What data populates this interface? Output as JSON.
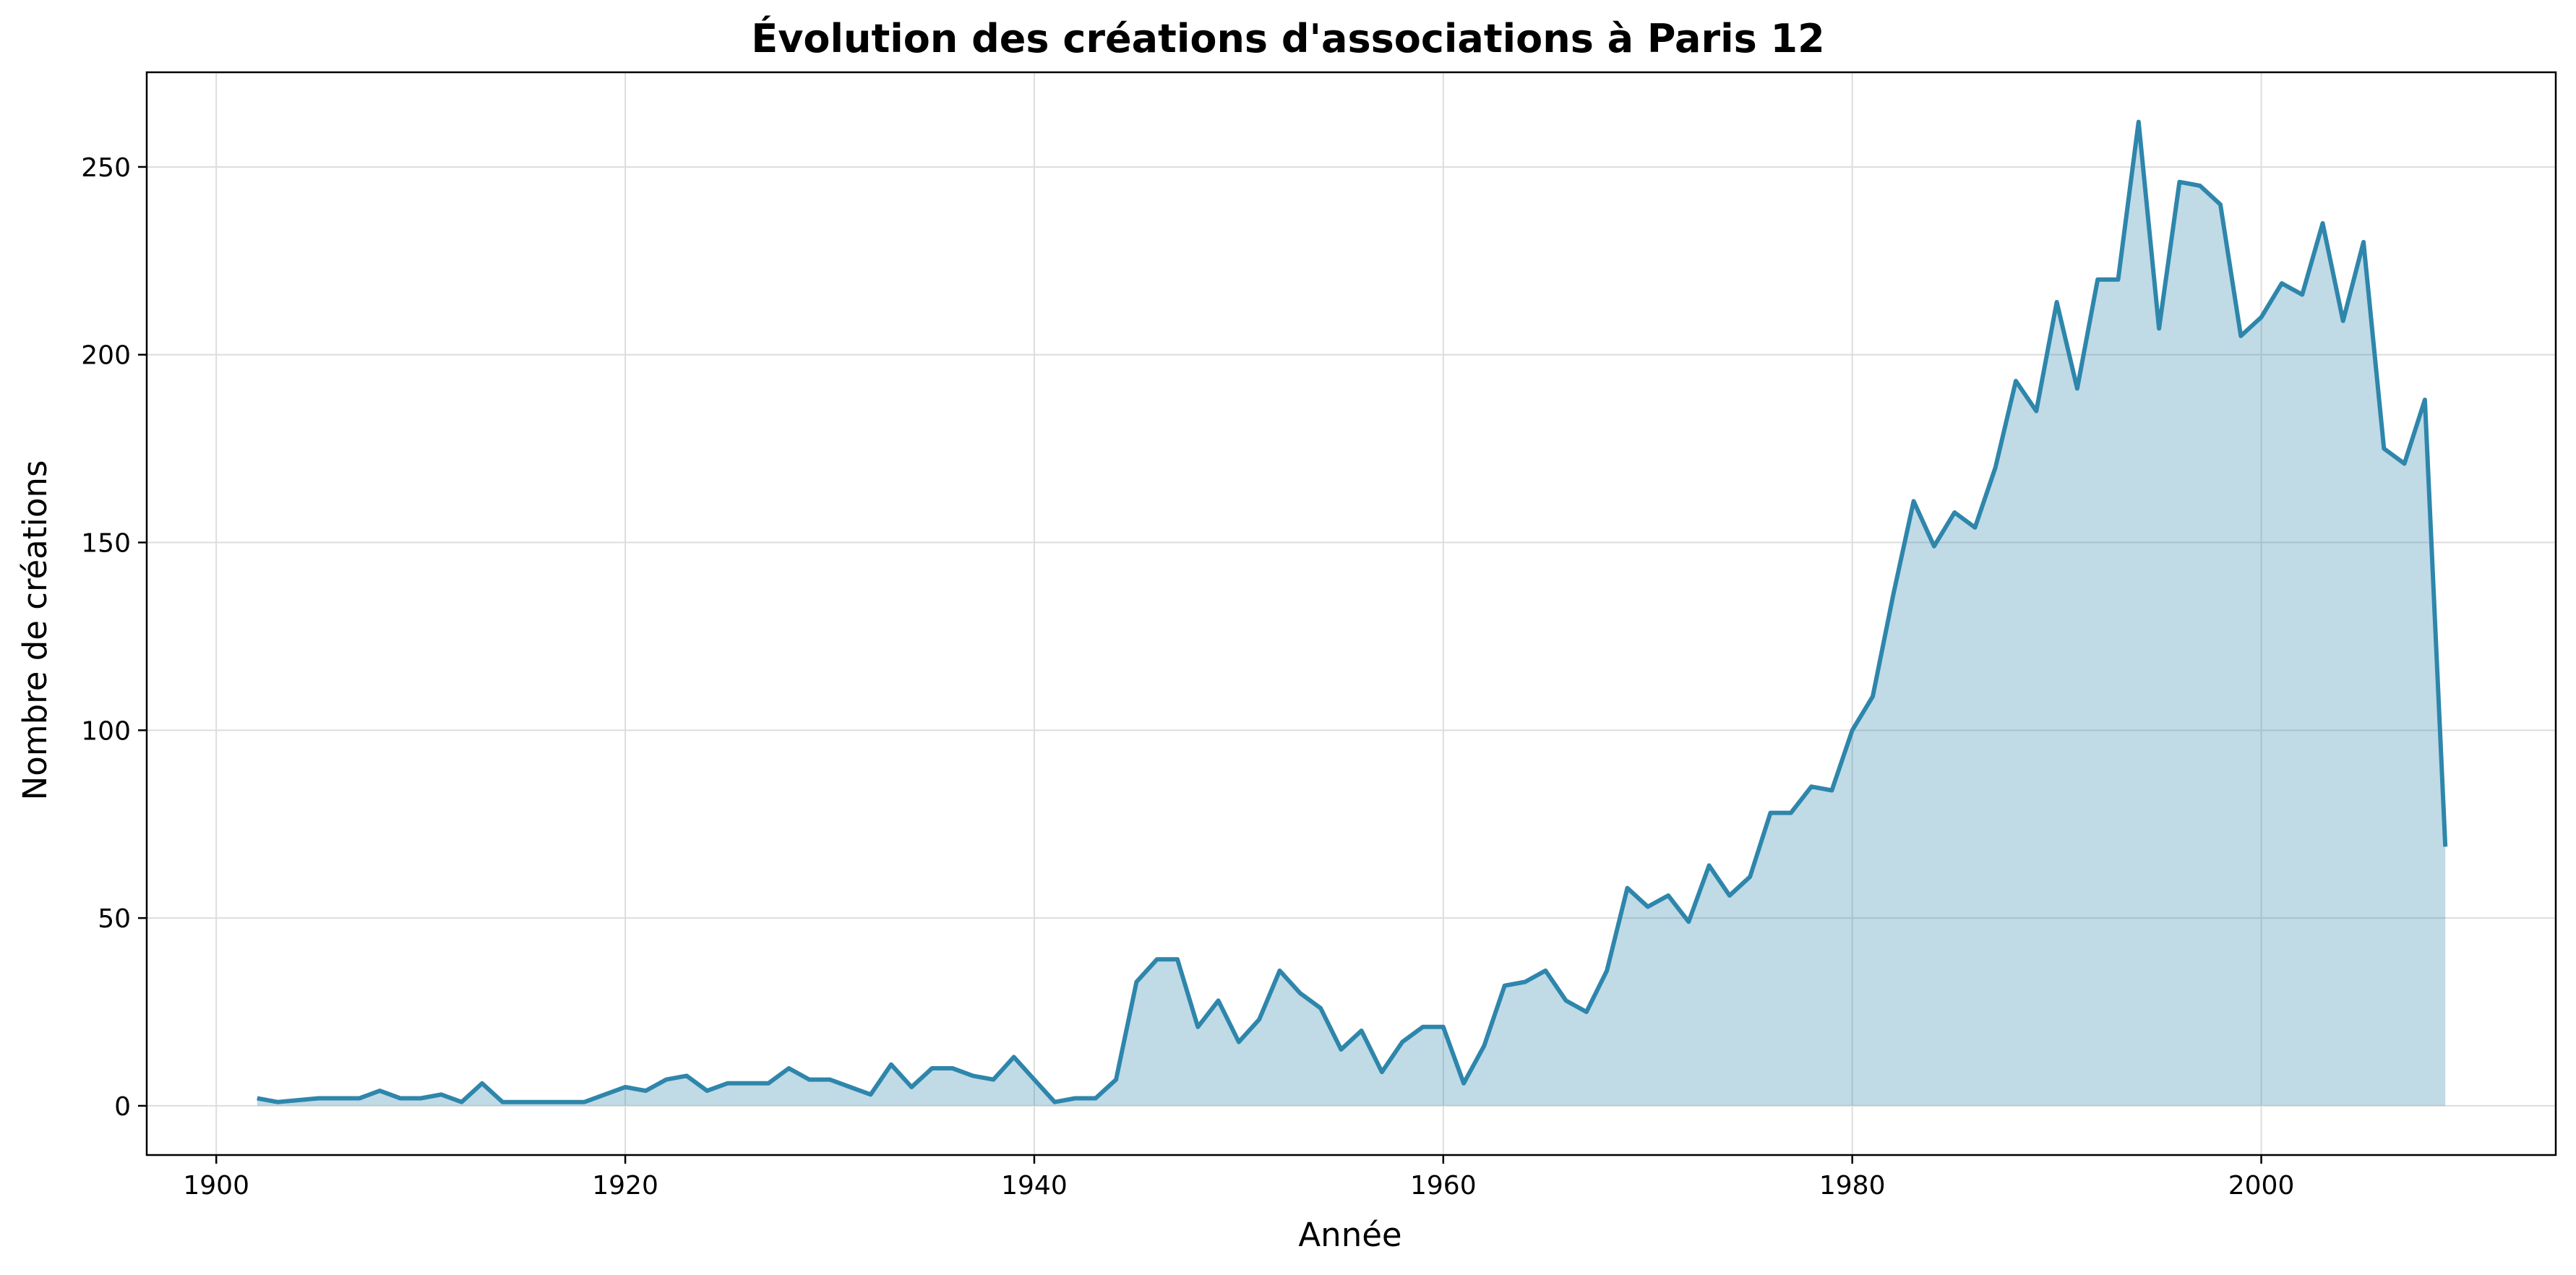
{
  "chart_data": {
    "type": "area",
    "title": "Évolution des créations d'associations à Paris 12",
    "xlabel": "Année",
    "ylabel": "Nombre de créations",
    "xlim": [
      1896.6,
      2014.4
    ],
    "ylim": [
      -13.1,
      275.2
    ],
    "xticks": [
      1900,
      1920,
      1940,
      1960,
      1980,
      2000
    ],
    "yticks": [
      0,
      50,
      100,
      150,
      200,
      250
    ],
    "grid": true,
    "line_color": "#2e86ab",
    "fill_color": "#2e86ab",
    "fill_opacity": 0.3,
    "x": [
      1902,
      1903,
      1904,
      1905,
      1906,
      1907,
      1908,
      1909,
      1910,
      1911,
      1912,
      1913,
      1914,
      1915,
      1916,
      1917,
      1918,
      1919,
      1920,
      1921,
      1922,
      1923,
      1924,
      1925,
      1926,
      1927,
      1928,
      1929,
      1930,
      1931,
      1932,
      1933,
      1934,
      1935,
      1936,
      1937,
      1938,
      1939,
      1940,
      1941,
      1942,
      1943,
      1944,
      1945,
      1946,
      1947,
      1948,
      1949,
      1950,
      1951,
      1952,
      1953,
      1954,
      1955,
      1956,
      1957,
      1958,
      1959,
      1960,
      1961,
      1962,
      1963,
      1964,
      1965,
      1966,
      1967,
      1968,
      1969,
      1970,
      1971,
      1972,
      1973,
      1974,
      1975,
      1976,
      1977,
      1978,
      1979,
      1980,
      1981,
      1982,
      1983,
      1984,
      1985,
      1986,
      1987,
      1988,
      1989,
      1990,
      1991,
      1992,
      1993,
      1994,
      1995,
      1996,
      1997,
      1998,
      1999,
      2000,
      2001,
      2002,
      2003,
      2004,
      2005,
      2006,
      2007,
      2008,
      2009
    ],
    "values": [
      2,
      1,
      1.5,
      2,
      2,
      2,
      4,
      2,
      2,
      3,
      1,
      6,
      1,
      1,
      1,
      1,
      1,
      3,
      5,
      4,
      7,
      8,
      4,
      6,
      6,
      6,
      10,
      7,
      7,
      5,
      3,
      11,
      5,
      10,
      10,
      8,
      7,
      13,
      7,
      1,
      2,
      2,
      7,
      33,
      39,
      39,
      21,
      28,
      17,
      23,
      36,
      30,
      26,
      15,
      20,
      9,
      17,
      21,
      21,
      6,
      16,
      32,
      33,
      36,
      28,
      25,
      36,
      58,
      53,
      56,
      49,
      64,
      56,
      61,
      78,
      78,
      85,
      84,
      100,
      109,
      136,
      161,
      149,
      158,
      154,
      170,
      193,
      185,
      214,
      191,
      220,
      220,
      262,
      207,
      246,
      245,
      240,
      205,
      210,
      219,
      216,
      235,
      209,
      230,
      175,
      171,
      188,
      69
    ]
  }
}
